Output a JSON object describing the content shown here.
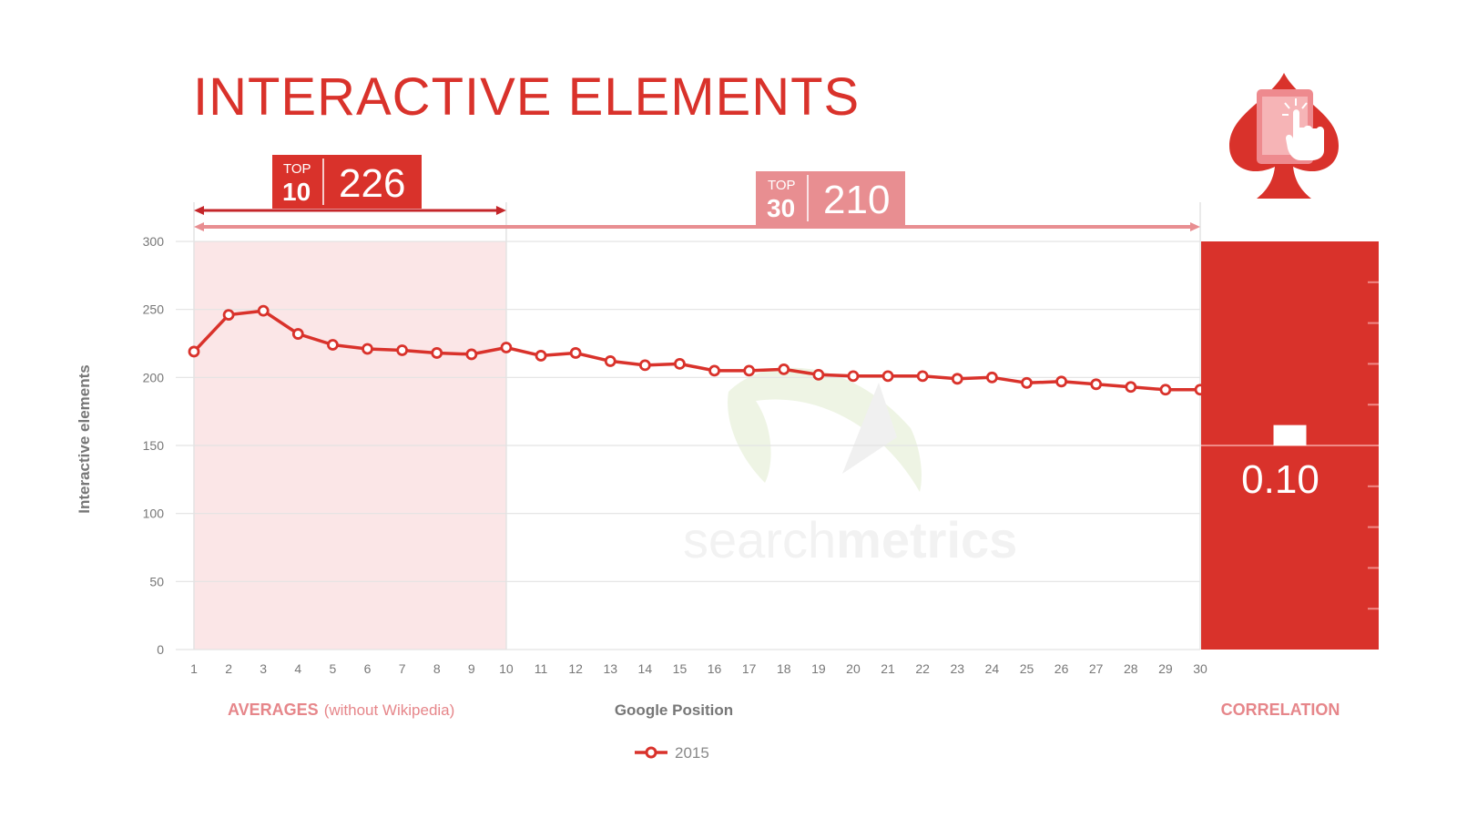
{
  "title": "INTERACTIVE ELEMENTS",
  "top10": {
    "small": "TOP",
    "num": "10",
    "value": "226"
  },
  "top30": {
    "small": "TOP",
    "num": "30",
    "value": "210"
  },
  "averages_label": "AVERAGES",
  "averages_sub": "(without Wikipedia)",
  "correlation_label": "CORRELATION",
  "correlation_value": "0.10",
  "watermark": {
    "light": "search",
    "bold": "metrics"
  },
  "colors": {
    "accent": "#d9322b",
    "light": "#e88e91",
    "band": "#fbe6e7",
    "grid": "#e3e3e3"
  },
  "icon": "spade-touch-icon",
  "chart_data": {
    "type": "line",
    "xlabel": "Google Position",
    "ylabel": "Interactive elements",
    "ylim": [
      0,
      300
    ],
    "yticks": [
      0,
      50,
      100,
      150,
      200,
      250,
      300
    ],
    "x": [
      1,
      2,
      3,
      4,
      5,
      6,
      7,
      8,
      9,
      10,
      11,
      12,
      13,
      14,
      15,
      16,
      17,
      18,
      19,
      20,
      21,
      22,
      23,
      24,
      25,
      26,
      27,
      28,
      29,
      30
    ],
    "series": [
      {
        "name": "2015",
        "values": [
          219,
          246,
          249,
          232,
          224,
          221,
          220,
          218,
          217,
          222,
          216,
          218,
          212,
          209,
          210,
          205,
          205,
          206,
          202,
          201,
          201,
          201,
          199,
          200,
          196,
          197,
          195,
          193,
          191,
          191
        ]
      }
    ],
    "grid": true,
    "legend_position": "bottom"
  }
}
